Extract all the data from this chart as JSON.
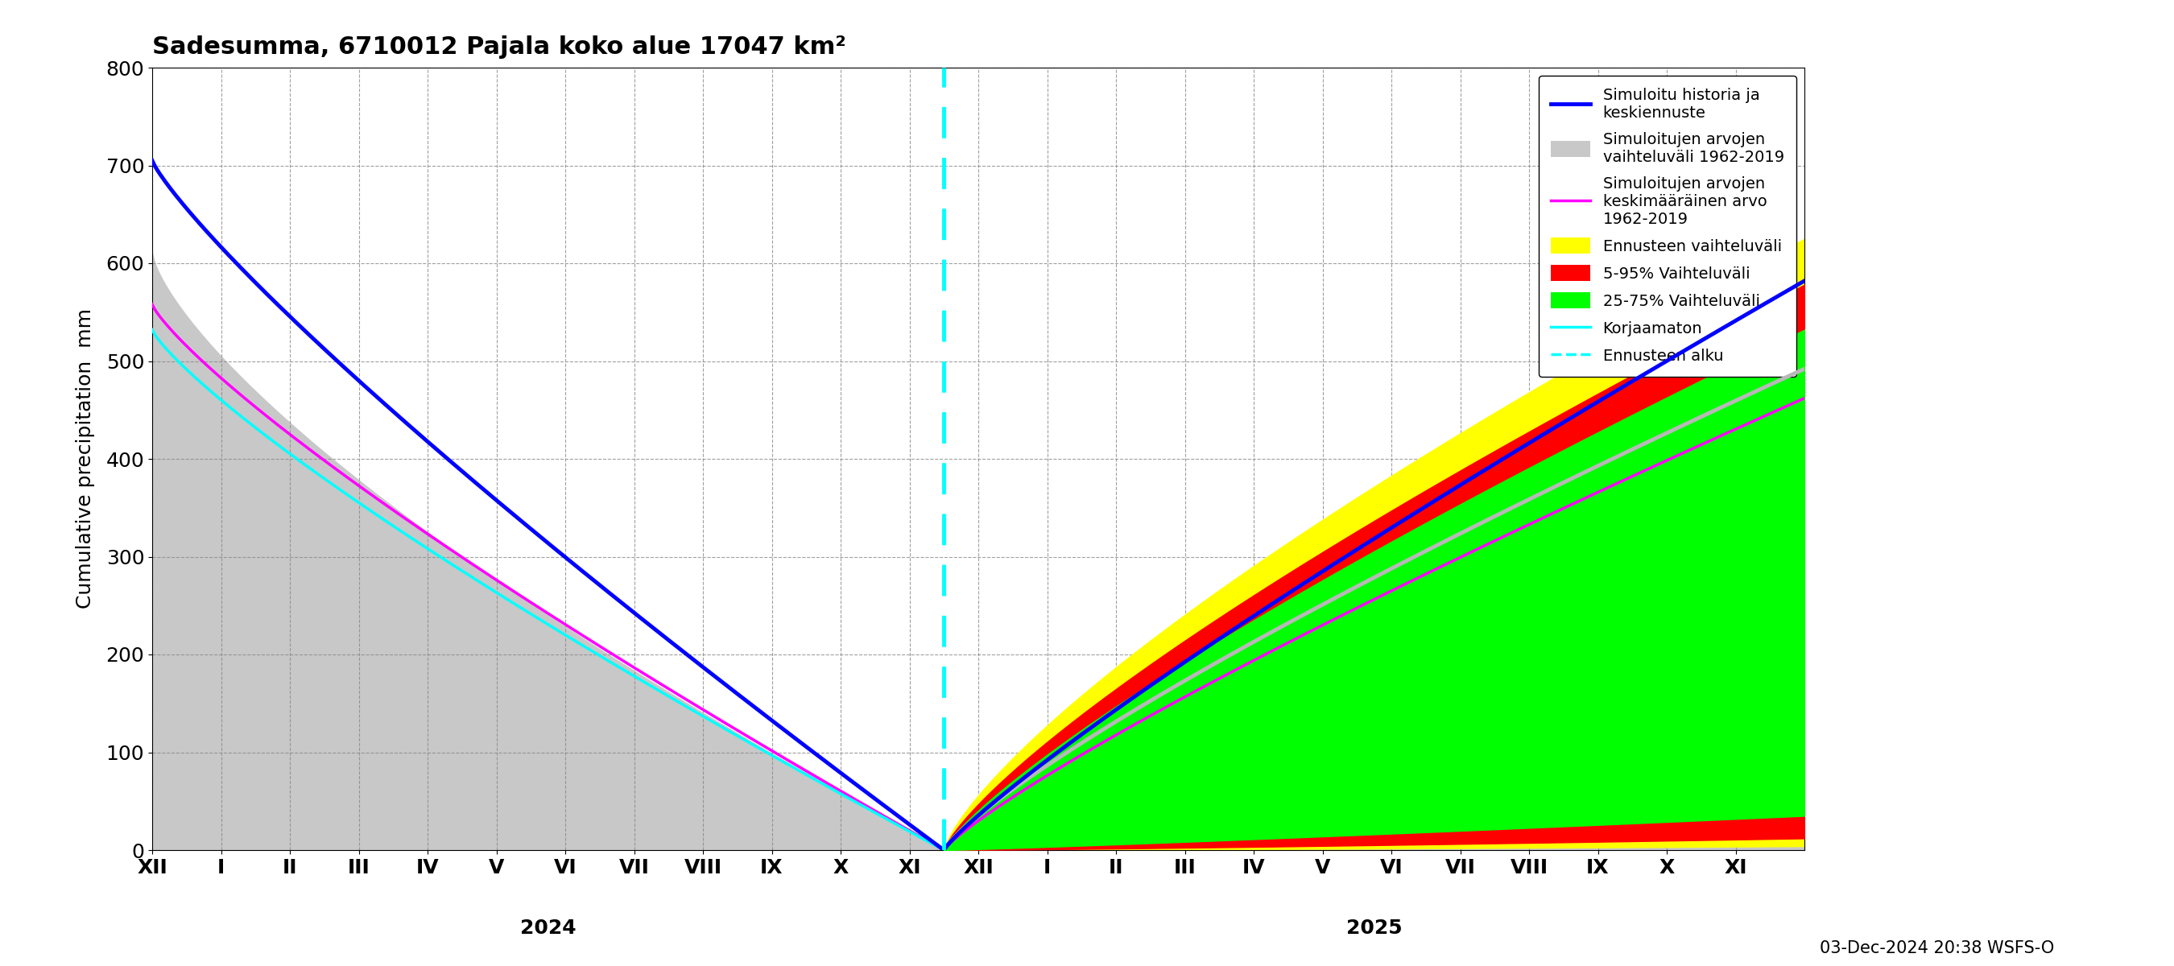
{
  "title": "Sadesumma, 6710012 Pajala koko alue 17047 km²",
  "ylabel": "Cumulative precipitation  mm",
  "footer": "03-Dec-2024 20:38 WSFS-O",
  "ylim": [
    0,
    800
  ],
  "xlim": [
    0,
    24
  ],
  "split_x": 11.5,
  "yticks": [
    0,
    100,
    200,
    300,
    400,
    500,
    600,
    700,
    800
  ],
  "month_labels": [
    "XII",
    "I",
    "II",
    "III",
    "IV",
    "V",
    "VI",
    "VII",
    "VIII",
    "IX",
    "X",
    "XI"
  ],
  "year_2024_x": 5.75,
  "year_2025_x": 17.75,
  "colors": {
    "blue": "#0000ff",
    "gray_band": "#c8c8c8",
    "magenta": "#ff00ff",
    "yellow": "#ffff00",
    "red": "#ff0000",
    "green": "#00ff00",
    "cyan": "#00ffff",
    "gray_line": "#b8b8b8"
  },
  "legend_entries": [
    {
      "label": "Simuloitu historia ja\nkeskiennuste",
      "type": "line",
      "color": "#0000ff",
      "lw": 3.5,
      "ls": "-"
    },
    {
      "label": "Simuloitujen arvojen\nvaihteluväli 1962-2019",
      "type": "patch",
      "color": "#c8c8c8"
    },
    {
      "label": "Simuloitujen arvojen\nkeskimääräinen arvo\n1962-2019",
      "type": "line",
      "color": "#ff00ff",
      "lw": 2.5,
      "ls": "-"
    },
    {
      "label": "Ennusteen vaihteluväli",
      "type": "patch",
      "color": "#ffff00"
    },
    {
      "label": "5-95% Vaihteluväli",
      "type": "patch",
      "color": "#ff0000"
    },
    {
      "label": "25-75% Vaihteluväli",
      "type": "patch",
      "color": "#00ff00"
    },
    {
      "label": "Korjaamaton",
      "type": "line",
      "color": "#00ffff",
      "lw": 2.5,
      "ls": "-"
    },
    {
      "label": "Ennusteen alku",
      "type": "line",
      "color": "#00ffff",
      "lw": 2.5,
      "ls": "--"
    }
  ]
}
